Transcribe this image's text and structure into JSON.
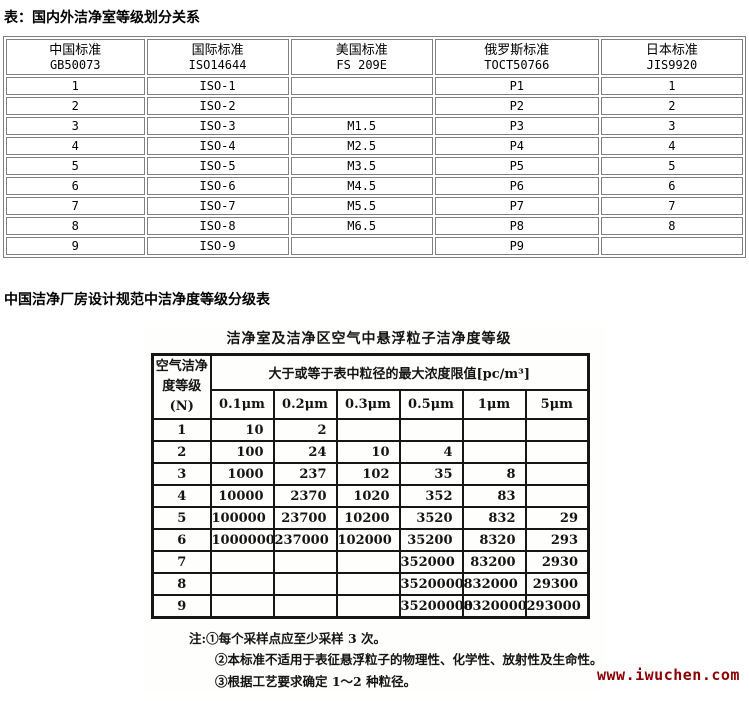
{
  "page": {
    "section1_title": "表：国内外洁净室等级划分关系",
    "section2_title": "中国洁净厂房设计规范中洁净度等级分级表",
    "watermark": "www.iwuchen.com"
  },
  "colors": {
    "std_table_border": "#808080",
    "scan_table_border": "#161616",
    "watermark_color": "#8B0000",
    "text": "#000000"
  },
  "standards_table": {
    "columns": [
      {
        "name": "中国标准",
        "code": "GB50073"
      },
      {
        "name": "国际标准",
        "code": "ISO14644"
      },
      {
        "name": "美国标准",
        "code": "FS 209E"
      },
      {
        "name": "俄罗斯标准",
        "code": "TOCT50766"
      },
      {
        "name": "日本标准",
        "code": "JIS9920"
      }
    ],
    "rows": [
      [
        "1",
        "ISO-1",
        "",
        "P1",
        "1"
      ],
      [
        "2",
        "ISO-2",
        "",
        "P2",
        "2"
      ],
      [
        "3",
        "ISO-3",
        "M1.5",
        "P3",
        "3"
      ],
      [
        "4",
        "ISO-4",
        "M2.5",
        "P4",
        "4"
      ],
      [
        "5",
        "ISO-5",
        "M3.5",
        "P5",
        "5"
      ],
      [
        "6",
        "ISO-6",
        "M4.5",
        "P6",
        "6"
      ],
      [
        "7",
        "ISO-7",
        "M5.5",
        "P7",
        "7"
      ],
      [
        "8",
        "ISO-8",
        "M6.5",
        "P8",
        "8"
      ],
      [
        "9",
        "ISO-9",
        "",
        "P9",
        ""
      ]
    ]
  },
  "scan_table": {
    "title": "洁净室及洁净区空气中悬浮粒子洁净度等级",
    "left_header_lines": [
      "空气洁净",
      "度等级",
      "(N)"
    ],
    "span_header": "大于或等于表中粒径的最大浓度限值[pc/m³]",
    "size_columns": [
      "0.1μm",
      "0.2μm",
      "0.3μm",
      "0.5μm",
      "1μm",
      "5μm"
    ],
    "rows": [
      {
        "grade": "1",
        "values": [
          "10",
          "2",
          "",
          "",
          "",
          ""
        ]
      },
      {
        "grade": "2",
        "values": [
          "100",
          "24",
          "10",
          "4",
          "",
          ""
        ]
      },
      {
        "grade": "3",
        "values": [
          "1000",
          "237",
          "102",
          "35",
          "8",
          ""
        ]
      },
      {
        "grade": "4",
        "values": [
          "10000",
          "2370",
          "1020",
          "352",
          "83",
          ""
        ]
      },
      {
        "grade": "5",
        "values": [
          "100000",
          "23700",
          "10200",
          "3520",
          "832",
          "29"
        ]
      },
      {
        "grade": "6",
        "values": [
          "1000000",
          "237000",
          "102000",
          "35200",
          "8320",
          "293"
        ]
      },
      {
        "grade": "7",
        "values": [
          "",
          "",
          "",
          "352000",
          "83200",
          "2930"
        ]
      },
      {
        "grade": "8",
        "values": [
          "",
          "",
          "",
          "3520000",
          "832000",
          "29300"
        ]
      },
      {
        "grade": "9",
        "values": [
          "",
          "",
          "",
          "35200000",
          "8320000",
          "293000"
        ]
      }
    ],
    "notes": [
      "注:①每个采样点应至少采样 3 次。",
      "②本标准不适用于表征悬浮粒子的物理性、化学性、放射性及生命性。",
      "③根据工艺要求确定 1～2 种粒径。"
    ]
  }
}
